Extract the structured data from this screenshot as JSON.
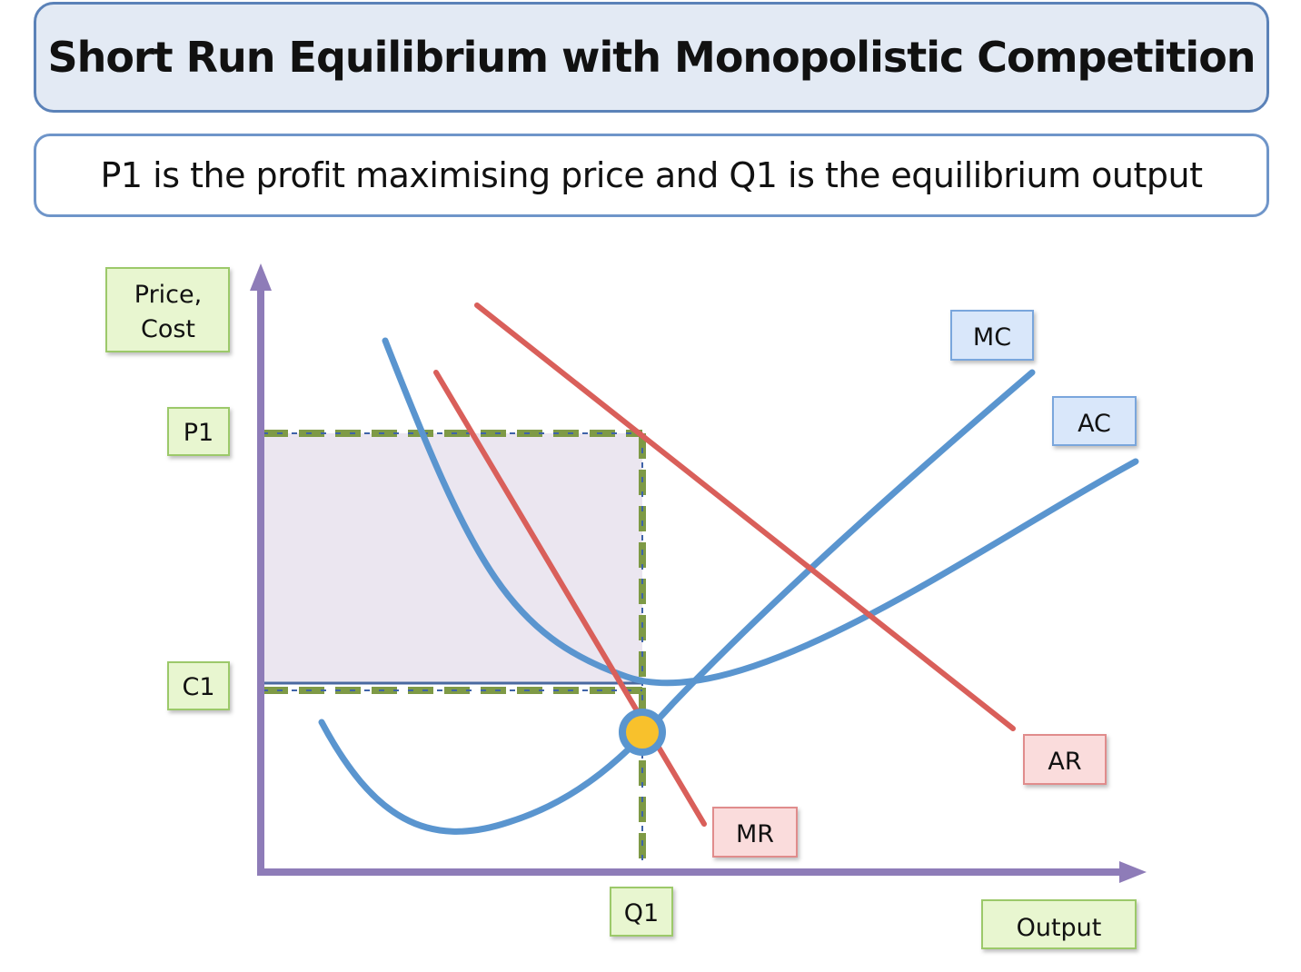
{
  "title": "Short Run Equilibrium with Monopolistic Competition",
  "subtitle": "P1 is the profit maximising price and Q1 is the equilibrium output",
  "axes": {
    "y_label_line1": "Price,",
    "y_label_line2": "Cost",
    "x_label": "Output",
    "p1": "P1",
    "c1": "C1",
    "q1": "Q1"
  },
  "curves": {
    "mc": "MC",
    "ac": "AC",
    "ar": "AR",
    "mr": "MR"
  },
  "colors": {
    "axis": "#8e7cb8",
    "cost_curve": "#5a95cf",
    "revenue_curve": "#d95f5a",
    "guide": "#7e9a46",
    "profit_area": "#ebe6f0",
    "equilibrium_point": "#f8c12c",
    "green_label_fill": "#e8f6d0",
    "blue_label_fill": "#d9e7fa",
    "red_label_fill": "#fadcdc"
  }
}
